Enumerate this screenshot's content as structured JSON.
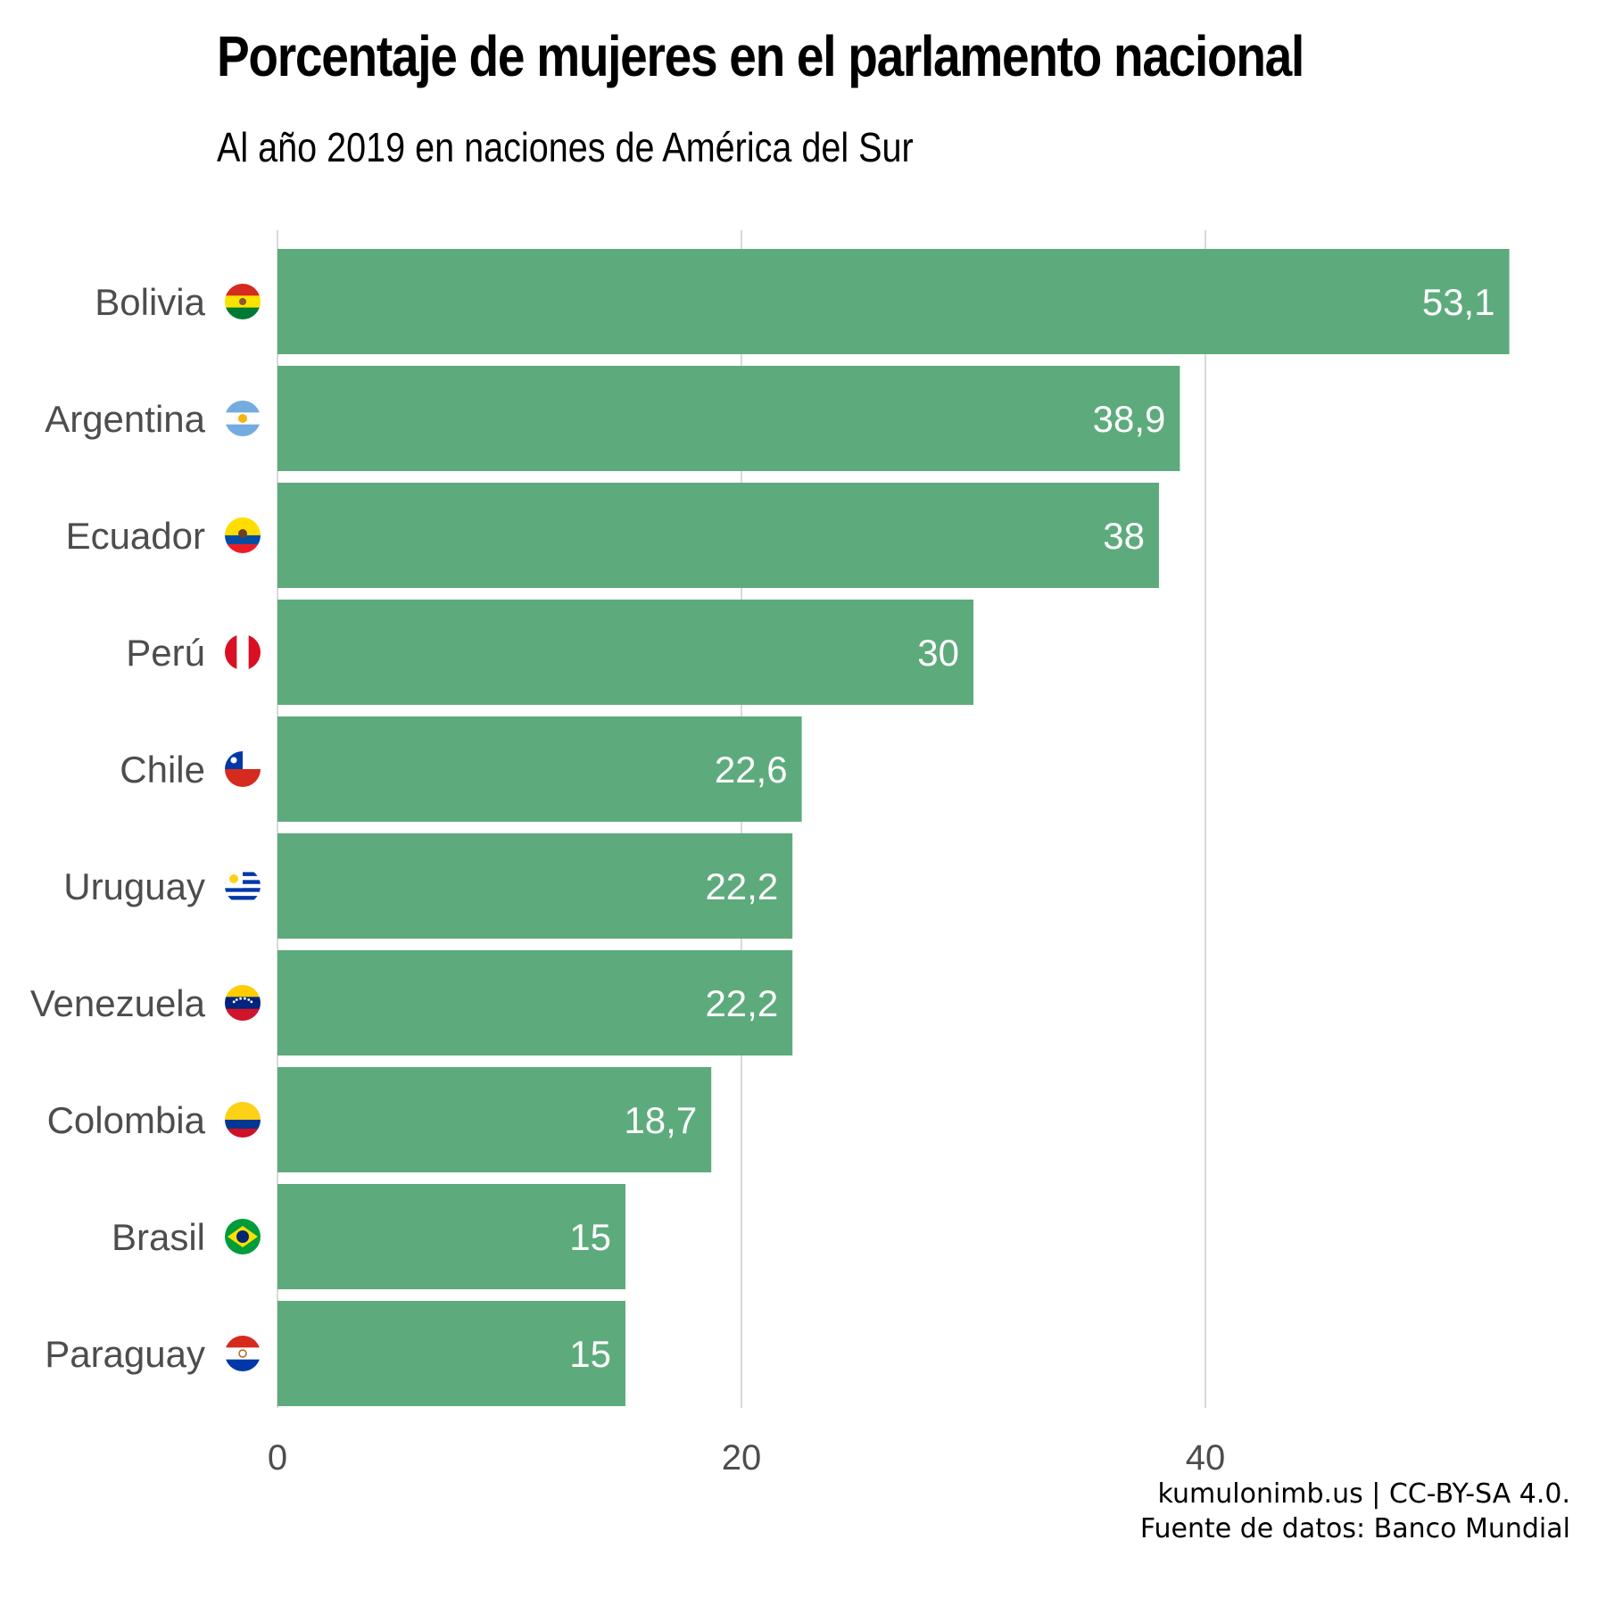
{
  "title": "Porcentaje de mujeres en el parlamento nacional",
  "subtitle": "Al año 2019 en naciones de América del Sur",
  "caption": {
    "line1": "kumulonimb.us | CC-BY-SA 4.0.",
    "line2": "Fuente de datos: Banco Mundial"
  },
  "colors": {
    "bar": "#5dab7c",
    "grid": "#d9d9d9",
    "value_text": "#ffffff",
    "axis_text": "#4d4d4d"
  },
  "chart_data": {
    "type": "bar",
    "orientation": "horizontal",
    "categories": [
      "Bolivia",
      "Argentina",
      "Ecuador",
      "Perú",
      "Chile",
      "Uruguay",
      "Venezuela",
      "Colombia",
      "Brasil",
      "Paraguay"
    ],
    "values": [
      53.1,
      38.9,
      38,
      30,
      22.6,
      22.2,
      22.2,
      18.7,
      15,
      15
    ],
    "value_labels": [
      "53,1",
      "38,9",
      "38",
      "30",
      "22,6",
      "22,2",
      "22,2",
      "18,7",
      "15",
      "15"
    ],
    "flag_icons": [
      "bolivia-flag-icon",
      "argentina-flag-icon",
      "ecuador-flag-icon",
      "peru-flag-icon",
      "chile-flag-icon",
      "uruguay-flag-icon",
      "venezuela-flag-icon",
      "colombia-flag-icon",
      "brazil-flag-icon",
      "paraguay-flag-icon"
    ],
    "x_ticks": [
      0,
      20,
      40
    ],
    "x_tick_labels": [
      "0",
      "20",
      "40"
    ],
    "xlim": [
      0,
      55
    ],
    "grid": true,
    "xlabel": "",
    "ylabel": ""
  }
}
